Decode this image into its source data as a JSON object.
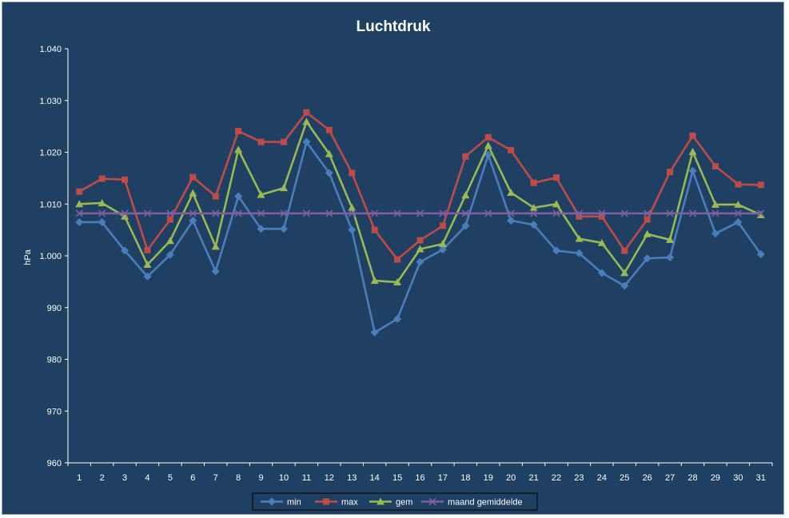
{
  "chart_data": {
    "type": "line",
    "title": "Luchtdruk",
    "xlabel": "",
    "ylabel": "hPa",
    "x": [
      1,
      2,
      3,
      4,
      5,
      6,
      7,
      8,
      9,
      10,
      11,
      12,
      13,
      14,
      15,
      16,
      17,
      18,
      19,
      20,
      21,
      22,
      23,
      24,
      25,
      26,
      27,
      28,
      29,
      30,
      31
    ],
    "ylim": [
      960,
      1040
    ],
    "yticks": [
      960,
      970,
      980,
      990,
      1000,
      1010,
      1020,
      1030,
      1040
    ],
    "ytick_labels": [
      "960",
      "970",
      "980",
      "990",
      "1.000",
      "1.010",
      "1.020",
      "1.030",
      "1.040"
    ],
    "grid": false,
    "legend_position": "bottom",
    "series": [
      {
        "name": "min",
        "color": "#4a7ebb",
        "marker": "diamond",
        "values": [
          1006.5,
          1006.5,
          1001,
          996,
          1000.2,
          1006.8,
          997,
          1011.5,
          1005.2,
          1005.2,
          1022,
          1016,
          1005,
          985.2,
          987.8,
          998.8,
          1001.2,
          1005.8,
          1019.5,
          1006.8,
          1006,
          1001,
          1000.5,
          996.7,
          994.2,
          999.5,
          999.7,
          1016.4,
          1004.3,
          1006.5,
          1000.3
        ]
      },
      {
        "name": "max",
        "color": "#be4b48",
        "marker": "square",
        "values": [
          1012.4,
          1014.9,
          1014.7,
          1001.1,
          1007,
          1015.2,
          1011.5,
          1024.1,
          1022,
          1022,
          1027.7,
          1024.3,
          1016,
          1005,
          999.3,
          1003,
          1005.8,
          1019.2,
          1022.9,
          1020.4,
          1014.1,
          1015.1,
          1007.6,
          1007.6,
          1001,
          1007,
          1016.2,
          1023.2,
          1017.3,
          1013.8,
          1013.7
        ]
      },
      {
        "name": "gem",
        "color": "#98b954",
        "marker": "triangle",
        "values": [
          1010,
          1010.2,
          1007.6,
          998.3,
          1002.9,
          1012.1,
          1001.8,
          1020.5,
          1011.8,
          1013.1,
          1025.9,
          1019.7,
          1009.3,
          995.2,
          994.9,
          1001.3,
          1002.3,
          1011.7,
          1021.3,
          1012.2,
          1009.3,
          1010,
          1003.3,
          1002.5,
          996.7,
          1004.2,
          1003.1,
          1020.1,
          1009.9,
          1009.9,
          1007.9
        ]
      },
      {
        "name": "maand gemiddelde",
        "color": "#7d60a0",
        "marker": "x",
        "values": [
          1008.2,
          1008.2,
          1008.2,
          1008.2,
          1008.2,
          1008.2,
          1008.2,
          1008.2,
          1008.2,
          1008.2,
          1008.2,
          1008.2,
          1008.2,
          1008.2,
          1008.2,
          1008.2,
          1008.2,
          1008.2,
          1008.2,
          1008.2,
          1008.2,
          1008.2,
          1008.2,
          1008.2,
          1008.2,
          1008.2,
          1008.2,
          1008.2,
          1008.2,
          1008.2,
          1008.2
        ]
      }
    ]
  }
}
